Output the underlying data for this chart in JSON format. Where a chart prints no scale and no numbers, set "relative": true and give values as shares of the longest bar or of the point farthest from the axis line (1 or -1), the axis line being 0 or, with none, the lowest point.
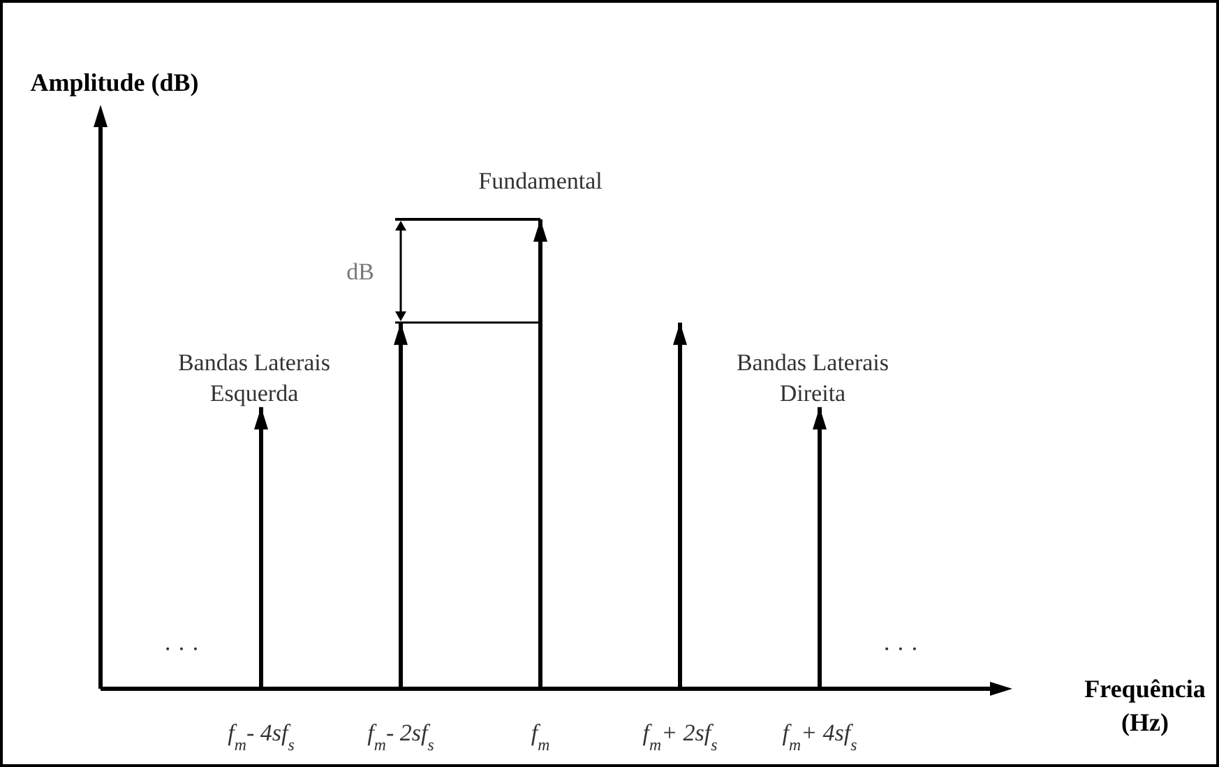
{
  "chart_data": {
    "type": "bar",
    "relative": true,
    "ylabel": "Amplitude (dB)",
    "xlabel": "Frequência (Hz)",
    "categories": [
      "f$_{m}$- 4sf$_{s}$",
      "f$_{m}$- 2sf$_{s}$",
      "f$_{m}$",
      "f$_{m}$+ 2sf$_{s}$",
      "f$_{m}$+ 4sf$_{s}$"
    ],
    "values": [
      0.6,
      0.78,
      1,
      0.78,
      0.6
    ],
    "color": "#000000",
    "annotations": [
      "Fundamental",
      "dB",
      "Bandas Laterais\nEsquerda",
      "Bandas Laterais\nDireita",
      "· · ·",
      "· · ·"
    ]
  }
}
